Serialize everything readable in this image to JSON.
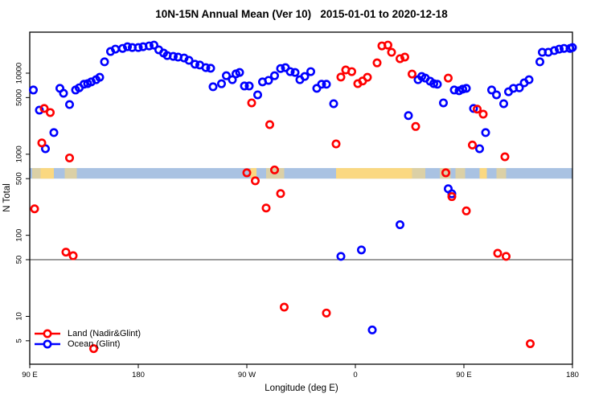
{
  "page": {
    "background": "#ffffff"
  },
  "chart_data": {
    "type": "scatter",
    "title": "10N-15N Annual Mean (Ver 10)   2015-01-01 to 2020-12-18",
    "xlabel": "Longitude (deg E)",
    "ylabel": "N Total",
    "x_axis": {
      "note": "longitude axis starts at 90E and wraps eastward through 180, 90W, 0, 90E to 180; positions stored as deg east of Greenwich + wraps (90..540)",
      "range": [
        90,
        540
      ],
      "ticks": [
        {
          "pos": 90,
          "label": "90 E"
        },
        {
          "pos": 180,
          "label": "180"
        },
        {
          "pos": 270,
          "label": "90 W"
        },
        {
          "pos": 360,
          "label": "0"
        },
        {
          "pos": 450,
          "label": "90 E"
        },
        {
          "pos": 540,
          "label": "180"
        }
      ]
    },
    "y_axis": {
      "scale": "log10",
      "tick_values": [
        10000,
        5000,
        1000,
        500,
        100,
        50,
        10,
        5
      ],
      "tick_labels": [
        "10000",
        "5000",
        "1000",
        "500",
        "100",
        "50",
        "10",
        "5"
      ],
      "top_value": 32000,
      "bottom_value": 3.2
    },
    "threshold_line": {
      "value": 50,
      "color": "#3a3a3a"
    },
    "map_band": {
      "description": "thin world-map strip of the 10N-15N latitude band drawn across the plot",
      "value_top": 675,
      "value_bottom": 500,
      "ocean_color": "#a9c2e2",
      "land_color": "#fdd97e",
      "land_segments": [
        {
          "from": 92,
          "to": 99,
          "solid": false
        },
        {
          "from": 99,
          "to": 110,
          "solid": true
        },
        {
          "from": 119,
          "to": 129,
          "solid": false
        },
        {
          "from": 273,
          "to": 278,
          "solid": true
        },
        {
          "from": 286,
          "to": 301,
          "solid": false
        },
        {
          "from": 344,
          "to": 407,
          "solid": true
        },
        {
          "from": 407,
          "to": 418,
          "solid": false
        },
        {
          "from": 430,
          "to": 439,
          "solid": false
        },
        {
          "from": 443,
          "to": 451,
          "solid": false
        },
        {
          "from": 463,
          "to": 469,
          "solid": true
        },
        {
          "from": 477,
          "to": 485,
          "solid": false
        }
      ]
    },
    "series": [
      {
        "name": "Land (Nadir&Glint)",
        "color": "#ff0000",
        "points": [
          [
            94,
            212
          ],
          [
            100,
            1380
          ],
          [
            102,
            3670
          ],
          [
            107,
            3270
          ],
          [
            120,
            62
          ],
          [
            123,
            900
          ],
          [
            126,
            56
          ],
          [
            143,
            4
          ],
          [
            270,
            590
          ],
          [
            274,
            4300
          ],
          [
            277,
            470
          ],
          [
            286,
            217
          ],
          [
            289,
            2320
          ],
          [
            293,
            640
          ],
          [
            298,
            327
          ],
          [
            301,
            13
          ],
          [
            336,
            11
          ],
          [
            344,
            1340
          ],
          [
            348,
            8950
          ],
          [
            352,
            10950
          ],
          [
            357,
            10450
          ],
          [
            362,
            7430
          ],
          [
            366,
            8000
          ],
          [
            370,
            8900
          ],
          [
            378,
            13400
          ],
          [
            382,
            21700
          ],
          [
            387,
            22200
          ],
          [
            390,
            18100
          ],
          [
            397,
            15100
          ],
          [
            401,
            15800
          ],
          [
            407,
            9750
          ],
          [
            410,
            2200
          ],
          [
            435,
            590
          ],
          [
            437,
            8700
          ],
          [
            440,
            300
          ],
          [
            452,
            200
          ],
          [
            457,
            1300
          ],
          [
            461,
            3600
          ],
          [
            466,
            3120
          ],
          [
            478,
            60
          ],
          [
            484,
            930
          ],
          [
            485,
            55
          ],
          [
            505,
            4.6
          ]
        ]
      },
      {
        "name": "Ocean (Glint)",
        "color": "#0000ff",
        "points": [
          [
            93,
            6200
          ],
          [
            98,
            3500
          ],
          [
            103,
            1170
          ],
          [
            110,
            1850
          ],
          [
            115,
            6500
          ],
          [
            118,
            5650
          ],
          [
            123,
            4100
          ],
          [
            128,
            6200
          ],
          [
            131,
            6600
          ],
          [
            135,
            7300
          ],
          [
            138,
            7430
          ],
          [
            141,
            7800
          ],
          [
            145,
            8300
          ],
          [
            148,
            8900
          ],
          [
            152,
            13800
          ],
          [
            157,
            18500
          ],
          [
            161,
            19800
          ],
          [
            167,
            20200
          ],
          [
            171,
            21200
          ],
          [
            175,
            20700
          ],
          [
            180,
            20700
          ],
          [
            184,
            21200
          ],
          [
            189,
            21700
          ],
          [
            193,
            22200
          ],
          [
            197,
            19400
          ],
          [
            201,
            17700
          ],
          [
            204,
            16500
          ],
          [
            209,
            16100
          ],
          [
            213,
            15800
          ],
          [
            218,
            15400
          ],
          [
            222,
            14400
          ],
          [
            227,
            12900
          ],
          [
            231,
            12600
          ],
          [
            236,
            11700
          ],
          [
            240,
            11500
          ],
          [
            242,
            6800
          ],
          [
            249,
            7400
          ],
          [
            253,
            9300
          ],
          [
            258,
            8300
          ],
          [
            261,
            9800
          ],
          [
            264,
            10200
          ],
          [
            268,
            6950
          ],
          [
            272,
            6950
          ],
          [
            279,
            5400
          ],
          [
            283,
            7800
          ],
          [
            288,
            8150
          ],
          [
            293,
            9300
          ],
          [
            298,
            11400
          ],
          [
            302,
            11700
          ],
          [
            306,
            10450
          ],
          [
            310,
            10200
          ],
          [
            314,
            8300
          ],
          [
            318,
            9100
          ],
          [
            323,
            10450
          ],
          [
            328,
            6500
          ],
          [
            332,
            7300
          ],
          [
            336,
            7300
          ],
          [
            342,
            4200
          ],
          [
            348,
            55
          ],
          [
            365,
            66
          ],
          [
            374,
            6.8
          ],
          [
            397,
            135
          ],
          [
            404,
            3000
          ],
          [
            412,
            8300
          ],
          [
            415,
            9100
          ],
          [
            418,
            8700
          ],
          [
            422,
            7950
          ],
          [
            425,
            7430
          ],
          [
            428,
            7300
          ],
          [
            433,
            4300
          ],
          [
            437,
            375
          ],
          [
            440,
            325
          ],
          [
            442,
            6200
          ],
          [
            446,
            6070
          ],
          [
            449,
            6350
          ],
          [
            452,
            6500
          ],
          [
            458,
            3670
          ],
          [
            463,
            1170
          ],
          [
            468,
            1850
          ],
          [
            473,
            6200
          ],
          [
            477,
            5400
          ],
          [
            483,
            4200
          ],
          [
            487,
            5900
          ],
          [
            491,
            6500
          ],
          [
            496,
            6600
          ],
          [
            500,
            7600
          ],
          [
            504,
            8300
          ],
          [
            513,
            13800
          ],
          [
            515,
            18100
          ],
          [
            520,
            18100
          ],
          [
            525,
            19000
          ],
          [
            529,
            19800
          ],
          [
            533,
            20200
          ],
          [
            538,
            20200
          ],
          [
            540,
            20700
          ]
        ]
      }
    ],
    "legend": {
      "entries": [
        "Land (Nadir&Glint)",
        "Ocean (Glint)"
      ]
    }
  }
}
